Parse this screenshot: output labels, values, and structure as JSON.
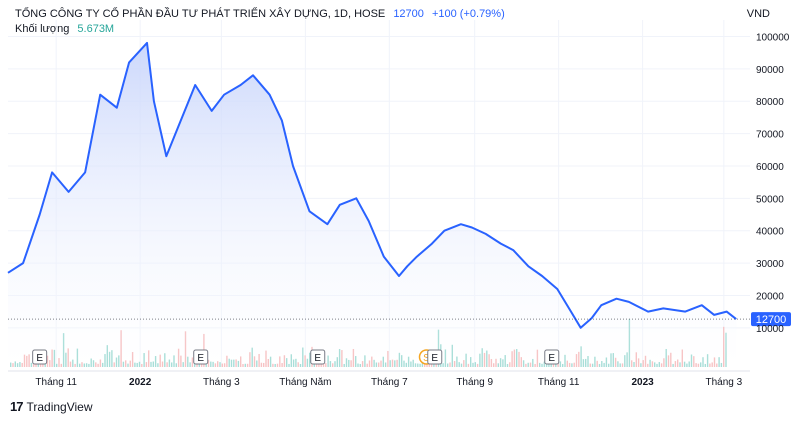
{
  "header": {
    "title": "TỔNG CÔNG TY CỔ PHẦN ĐẦU TƯ PHÁT TRIỂN XÂY DỰNG, 1D, HOSE",
    "last_price": "12700",
    "change": "+100 (+0.79%)",
    "volume_label": "Khối lượng",
    "volume_value": "5.673M",
    "currency": "VND"
  },
  "brand": {
    "logo": "17",
    "name": "TradingView"
  },
  "colors": {
    "line": "#2962ff",
    "area_top": "#c7d4fb",
    "area_bottom": "#ffffff",
    "vol_up": "#7fcfc6",
    "vol_down": "#f3a7a8",
    "last_badge": "#2962ff",
    "event_s": "#f5a623"
  },
  "chart_data": {
    "type": "area",
    "series": [
      {
        "x": [
          "2021-09-27",
          "2021-10-08",
          "2021-10-20",
          "2021-10-29",
          "2021-11-10",
          "2021-11-22",
          "2021-12-03",
          "2021-12-15",
          "2021-12-24",
          "2022-01-06",
          "2022-01-11",
          "2022-01-20",
          "2022-02-10",
          "2022-02-22",
          "2022-03-03",
          "2022-03-15",
          "2022-03-24",
          "2022-04-05",
          "2022-04-14",
          "2022-04-22",
          "2022-05-04",
          "2022-05-17",
          "2022-05-26",
          "2022-06-07",
          "2022-06-16",
          "2022-06-27",
          "2022-07-08",
          "2022-07-14",
          "2022-07-21",
          "2022-08-01",
          "2022-08-10",
          "2022-08-22",
          "2022-08-30",
          "2022-09-09",
          "2022-09-20",
          "2022-09-29",
          "2022-10-10",
          "2022-10-20",
          "2022-10-31",
          "2022-11-10",
          "2022-11-17",
          "2022-11-25",
          "2022-12-02",
          "2022-12-13",
          "2022-12-22",
          "2023-01-05",
          "2023-01-16",
          "2023-02-01",
          "2023-02-13",
          "2023-02-22",
          "2023-03-03",
          "2023-03-10"
        ],
        "values": [
          27000,
          30000,
          45000,
          58000,
          52000,
          58000,
          82000,
          78000,
          92000,
          98000,
          80000,
          63000,
          85000,
          77000,
          82000,
          85000,
          88000,
          82000,
          74000,
          60000,
          46000,
          42000,
          48000,
          50000,
          43000,
          32000,
          26000,
          29000,
          32000,
          36000,
          40000,
          42000,
          41000,
          39000,
          36000,
          34000,
          29000,
          26000,
          22000,
          15000,
          10000,
          13000,
          17000,
          19000,
          18000,
          15000,
          16000,
          15000,
          17000,
          14000,
          15000,
          12700
        ]
      }
    ],
    "volume_max_label": "10000",
    "y_ticks": [
      10000,
      20000,
      30000,
      40000,
      50000,
      60000,
      70000,
      80000,
      90000,
      100000
    ],
    "ylim": [
      5000,
      102000
    ],
    "x_tick_labels": [
      "Tháng 11",
      "2022",
      "Tháng 3",
      "Tháng Năm",
      "Tháng 7",
      "Tháng 9",
      "Tháng 11",
      "2023",
      "Tháng 3"
    ],
    "x_tick_dates": [
      "2021-11-01",
      "2022-01-01",
      "2022-03-01",
      "2022-05-01",
      "2022-07-01",
      "2022-09-01",
      "2022-11-01",
      "2023-01-01",
      "2023-03-01"
    ],
    "bold_ticks": [
      "2022",
      "2023"
    ],
    "last_price_label": "12700",
    "events": [
      {
        "type": "E",
        "date": "2021-10-20"
      },
      {
        "type": "E",
        "date": "2022-02-14"
      },
      {
        "type": "E",
        "date": "2022-05-10"
      },
      {
        "type": "S",
        "date": "2022-07-28"
      },
      {
        "type": "E",
        "date": "2022-08-03"
      },
      {
        "type": "E",
        "date": "2022-10-27"
      }
    ],
    "x_range": [
      "2021-09-27",
      "2023-03-20"
    ]
  }
}
